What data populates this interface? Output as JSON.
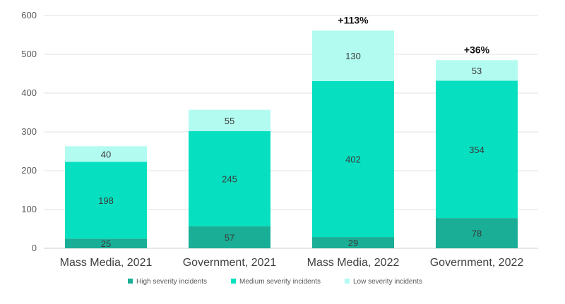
{
  "chart_data": {
    "type": "bar",
    "stacked": true,
    "categories": [
      "Mass Media, 2021",
      "Government, 2021",
      "Mass Media, 2022",
      "Government, 2022"
    ],
    "series": [
      {
        "name": "High severity incidents",
        "values": [
          25,
          57,
          29,
          78
        ],
        "color": "#1aae96"
      },
      {
        "name": "Medium severity incidents",
        "values": [
          198,
          245,
          402,
          354
        ],
        "color": "#06e0c0"
      },
      {
        "name": "Low severity incidents",
        "values": [
          40,
          55,
          130,
          53
        ],
        "color": "#b2fbf0"
      }
    ],
    "annotations": [
      "",
      "",
      "+113%",
      "+36%"
    ],
    "yticks": [
      0,
      100,
      200,
      300,
      400,
      500,
      600
    ],
    "ylim": [
      0,
      600
    ],
    "grid": true,
    "legend": "bottom",
    "title": "",
    "xlabel": "",
    "ylabel": ""
  }
}
